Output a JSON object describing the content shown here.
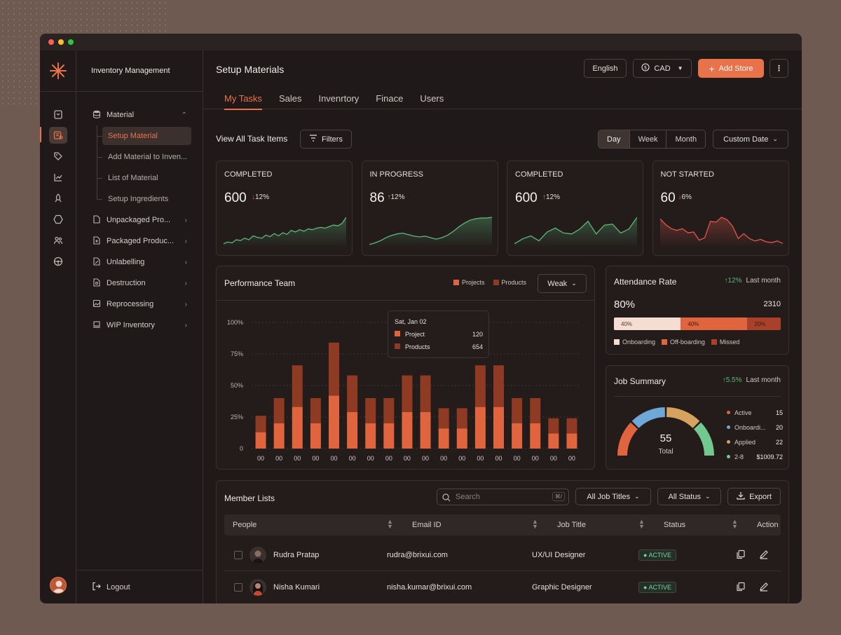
{
  "sidebar": {
    "app_title": "Inventory Management",
    "sections": [
      {
        "label": "Material",
        "icon": "database-icon",
        "expanded": true,
        "children": [
          "Setup Material",
          "Add Material to Inven...",
          "List of Material",
          "Setup Ingredients"
        ]
      },
      {
        "label": "Unpackaged Pro...",
        "icon": "file-icon"
      },
      {
        "label": "Packaged Produc...",
        "icon": "file-plus-icon"
      },
      {
        "label": "Unlabelling",
        "icon": "edit-file-icon"
      },
      {
        "label": "Destruction",
        "icon": "file-search-icon"
      },
      {
        "label": "Reprocessing",
        "icon": "image-file-icon"
      },
      {
        "label": "WIP Inventory",
        "icon": "laptop-icon"
      }
    ],
    "logout": "Logout"
  },
  "header": {
    "title": "Setup Materials",
    "tabs": [
      "My Tasks",
      "Sales",
      "Invenrtory",
      "Finace",
      "Users"
    ],
    "language": "English",
    "currency": "CAD",
    "add_store": "Add Store"
  },
  "toolbar": {
    "view_all": "View All Task Items",
    "filters": "Filters",
    "ranges": [
      "Day",
      "Week",
      "Month"
    ],
    "custom_date": "Custom Date"
  },
  "stats": [
    {
      "label": "COMPLETED",
      "value": "600",
      "delta": "12%",
      "direction": "down",
      "color": "#5cb879",
      "spark": [
        4,
        6,
        5,
        9,
        8,
        11,
        9,
        14,
        12,
        11,
        15,
        13,
        17,
        14,
        18,
        16,
        21,
        19,
        22,
        20,
        23,
        22,
        24,
        25,
        24,
        26,
        28,
        27,
        30,
        38
      ]
    },
    {
      "label": "IN PROGRESS",
      "value": "86",
      "delta": "12%",
      "direction": "up",
      "color": "#5cb879",
      "spark": [
        3,
        5,
        8,
        12,
        15,
        17,
        18,
        16,
        14,
        13,
        14,
        12,
        10,
        12,
        15,
        20,
        26,
        31,
        35,
        37,
        38,
        38,
        39
      ]
    },
    {
      "label": "COMPLETED",
      "value": "600",
      "delta": "12%",
      "direction": "up",
      "color": "#5cb879",
      "spark": [
        3,
        8,
        11,
        6,
        15,
        19,
        14,
        13,
        18,
        26,
        13,
        22,
        23,
        14,
        18,
        30
      ]
    },
    {
      "label": "NOT STARTED",
      "value": "60",
      "delta": "6%",
      "direction": "down",
      "color": "#e0574a",
      "spark": [
        34,
        27,
        22,
        20,
        22,
        17,
        18,
        8,
        11,
        31,
        30,
        36,
        33,
        25,
        10,
        16,
        10,
        7,
        9,
        6,
        5,
        7,
        4
      ]
    }
  ],
  "performance": {
    "title": "Performance Team",
    "legend": [
      "Projects",
      "Products"
    ],
    "dropdown": "Weak",
    "tooltip": {
      "date": "Sat, Jan 02",
      "rows": [
        {
          "label": "Project",
          "value": "120"
        },
        {
          "label": "Products",
          "value": "654"
        }
      ]
    }
  },
  "chart_data": {
    "type": "bar",
    "stacked": true,
    "categories": [
      "00",
      "00",
      "00",
      "00",
      "00",
      "00",
      "00",
      "00",
      "00",
      "00",
      "00",
      "00",
      "00",
      "00",
      "00",
      "00",
      "00",
      "00"
    ],
    "series": [
      {
        "name": "Projects",
        "color": "#e0643e",
        "values": [
          13,
          20,
          33,
          20,
          42,
          29,
          20,
          20,
          29,
          29,
          16,
          16,
          33,
          33,
          20,
          20,
          12,
          12
        ]
      },
      {
        "name": "Products",
        "color": "#8f3a22",
        "values": [
          13,
          20,
          33,
          20,
          42,
          29,
          20,
          20,
          29,
          29,
          16,
          16,
          33,
          33,
          20,
          20,
          12,
          12
        ]
      }
    ],
    "y_ticks": [
      "100%",
      "75%",
      "50%",
      "25%",
      "0"
    ],
    "ylim": [
      0,
      100
    ],
    "grid": true,
    "legend_position": "top-right"
  },
  "attendance": {
    "title": "Attendance Rate",
    "delta": "12%",
    "period": "Last month",
    "percent": "80%",
    "total": "2310",
    "segments": [
      {
        "label": "Onboarding",
        "value": 40,
        "text": "40%",
        "color": "#f6ddd2"
      },
      {
        "label": "Off-boarding",
        "value": 40,
        "text": "40%",
        "color": "#e0643e"
      },
      {
        "label": "Missed",
        "value": 20,
        "text": "20%",
        "color": "#a8402a"
      }
    ]
  },
  "job_summary": {
    "title": "Job Summary",
    "delta": "5.5%",
    "period": "Last month",
    "total": "55",
    "total_label": "Total",
    "items": [
      {
        "label": "Active",
        "value": "15",
        "color": "#e0643e"
      },
      {
        "label": "Onboardi...",
        "value": "20",
        "color": "#6fa8d8"
      },
      {
        "label": "Applied",
        "value": "22",
        "color": "#d6a35e"
      },
      {
        "label": "2-8",
        "value": "$1009.72",
        "color": "#72c98f"
      }
    ]
  },
  "members": {
    "title": "Member Lists",
    "search_placeholder": "Search",
    "shortcut": "⌘/",
    "filter_titles": "All Job Titles",
    "filter_status": "All Status",
    "export": "Export",
    "columns": [
      "People",
      "Email ID",
      "Job Title",
      "Status",
      "Action"
    ],
    "rows": [
      {
        "name": "Rudra Pratap",
        "email": "rudra@brixui.com",
        "title": "UX/UI Designer",
        "status": "ACTIVE"
      },
      {
        "name": "Nisha Kumari",
        "email": "nisha.kumar@brixui.com",
        "title": "Graphic Designer",
        "status": "ACTIVE"
      }
    ]
  }
}
